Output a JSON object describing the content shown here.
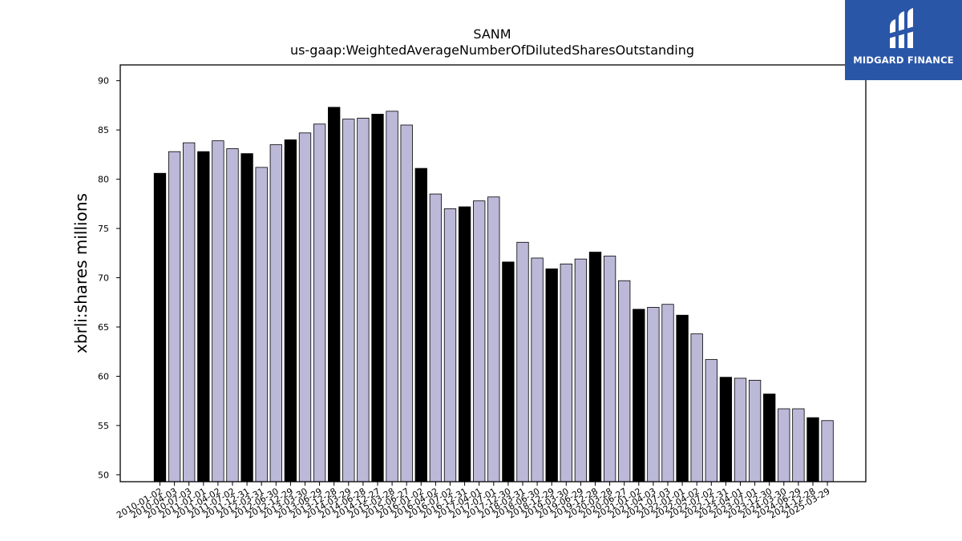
{
  "brand": {
    "name": "MIDGARD FINANCE",
    "logo_color": "#2a56a8"
  },
  "chart_data": {
    "type": "bar",
    "title": "SANM",
    "subtitle": "us-gaap:WeightedAverageNumberOfDilutedSharesOutstanding",
    "xlabel": "",
    "ylabel": "xbrli:shares millions",
    "ylim": [
      49.3,
      91.6
    ],
    "yticks": [
      50,
      55,
      60,
      65,
      70,
      75,
      80,
      85,
      90
    ],
    "colors": {
      "fy": "#000000",
      "quarter": "#bcb8d8"
    },
    "categories": [
      "2010-01-02",
      "2010-04-03",
      "2010-07-03",
      "2011-01-01",
      "2011-04-02",
      "2011-07-02",
      "2011-12-31",
      "2012-03-31",
      "2012-06-30",
      "2012-12-29",
      "2013-03-30",
      "2013-06-29",
      "2013-12-28",
      "2014-03-29",
      "2014-06-28",
      "2014-12-27",
      "2015-03-28",
      "2015-06-27",
      "2016-01-02",
      "2016-04-02",
      "2016-07-02",
      "2016-12-31",
      "2017-04-01",
      "2017-07-01",
      "2017-12-30",
      "2018-03-31",
      "2018-06-30",
      "2018-12-29",
      "2019-03-30",
      "2019-06-29",
      "2019-12-28",
      "2020-03-28",
      "2020-06-27",
      "2021-01-02",
      "2021-04-03",
      "2021-07-03",
      "2022-01-01",
      "2022-04-02",
      "2022-07-02",
      "2022-12-31",
      "2023-04-01",
      "2023-07-01",
      "2023-12-30",
      "2024-03-30",
      "2024-06-29",
      "2024-12-28",
      "2025-03-29"
    ],
    "values": [
      80.6,
      82.8,
      83.7,
      82.8,
      83.9,
      83.1,
      82.6,
      81.2,
      83.5,
      84.0,
      84.7,
      85.6,
      87.3,
      86.1,
      86.2,
      86.6,
      86.9,
      85.5,
      81.1,
      78.5,
      77.0,
      77.2,
      77.8,
      78.2,
      71.6,
      73.6,
      72.0,
      70.9,
      71.4,
      71.9,
      72.6,
      72.2,
      69.7,
      66.8,
      67.0,
      67.3,
      66.2,
      64.3,
      61.7,
      59.9,
      59.8,
      59.6,
      58.2,
      56.7,
      56.7,
      55.8,
      55.5
    ],
    "fiscal_year_flags": [
      true,
      false,
      false,
      true,
      false,
      false,
      true,
      false,
      false,
      true,
      false,
      false,
      true,
      false,
      false,
      true,
      false,
      false,
      true,
      false,
      false,
      true,
      false,
      false,
      true,
      false,
      false,
      true,
      false,
      false,
      true,
      false,
      false,
      true,
      false,
      false,
      true,
      false,
      false,
      true,
      false,
      false,
      true,
      false,
      false,
      true,
      false
    ]
  }
}
